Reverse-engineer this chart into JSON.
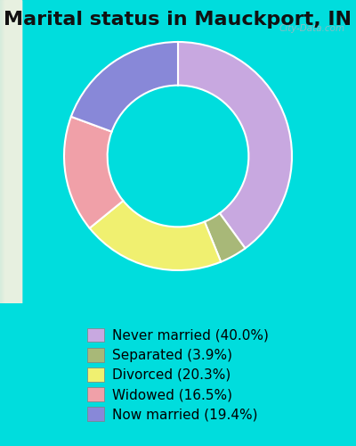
{
  "title": "Marital status in Mauckport, IN",
  "slices": [
    {
      "label": "Never married (40.0%)",
      "value": 40.0,
      "color": "#C8A8E0"
    },
    {
      "label": "Separated (3.9%)",
      "value": 3.9,
      "color": "#A8B878"
    },
    {
      "label": "Divorced (20.3%)",
      "value": 20.3,
      "color": "#F0F070"
    },
    {
      "label": "Widowed (16.5%)",
      "value": 16.5,
      "color": "#F0A0A8"
    },
    {
      "label": "Now married (19.4%)",
      "value": 19.4,
      "color": "#8888D8"
    }
  ],
  "background_color_top": "#00DDDD",
  "chart_bg_start": "#C8E8D8",
  "chart_bg_end": "#E8F0E0",
  "legend_bg": "#00DDDD",
  "title_fontsize": 16,
  "donut_width": 0.38,
  "start_angle": 90,
  "legend_marker": "o",
  "legend_fontsize": 11
}
